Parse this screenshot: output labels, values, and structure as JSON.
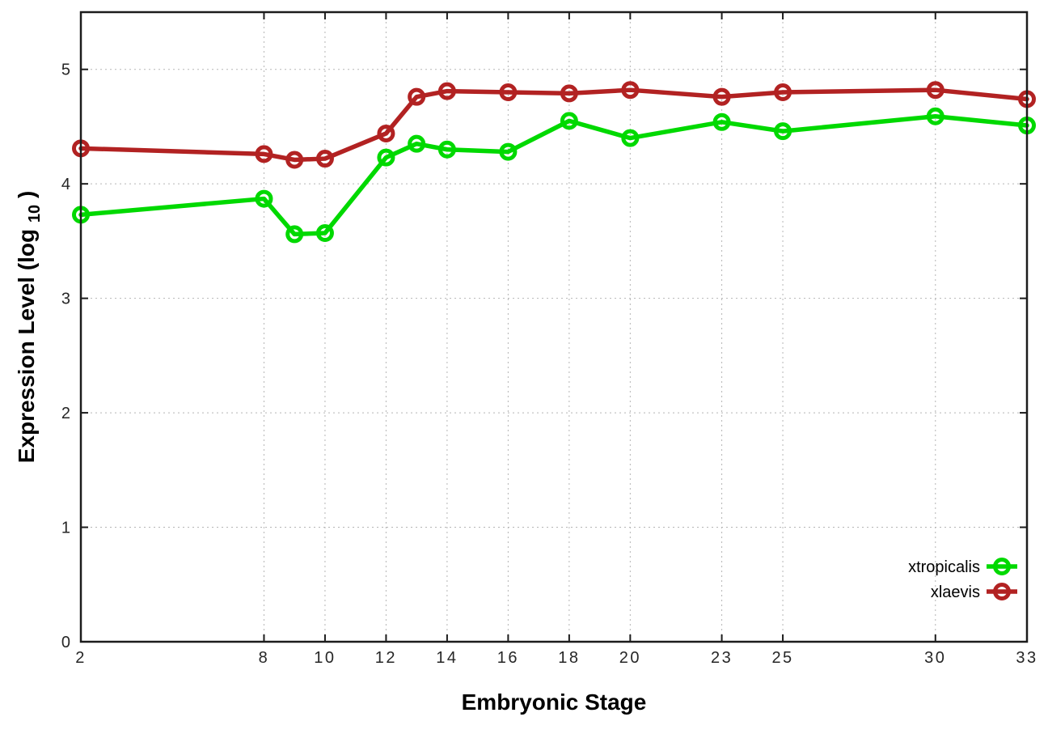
{
  "chart_data": {
    "type": "line",
    "title": "",
    "xlabel": "Embryonic Stage",
    "ylabel": "Expression Level (log10)",
    "ylabel_parts": {
      "main": "Expression Level (log",
      "sub": "10",
      "close": ")"
    },
    "xlim": [
      2,
      33
    ],
    "ylim": [
      0,
      5.5
    ],
    "x_ticks": [
      2,
      8,
      10,
      12,
      14,
      16,
      18,
      20,
      23,
      25,
      30,
      33
    ],
    "x_tick_labels": [
      "2",
      "8",
      "10",
      "12",
      "14",
      "16",
      "18",
      "20",
      "23",
      "25",
      "30",
      "33"
    ],
    "y_ticks": [
      0,
      1,
      2,
      3,
      4,
      5
    ],
    "y_tick_labels": [
      "0",
      "1",
      "2",
      "3",
      "4",
      "5"
    ],
    "grid": true,
    "legend_position": "bottom-right",
    "x": [
      2,
      8,
      9,
      10,
      12,
      13,
      14,
      16,
      18,
      20,
      23,
      25,
      30,
      33
    ],
    "series": [
      {
        "name": "xtropicalis",
        "color": "#00d900",
        "values": [
          3.73,
          3.87,
          3.56,
          3.57,
          4.23,
          4.35,
          4.3,
          4.28,
          4.55,
          4.4,
          4.54,
          4.46,
          4.59,
          4.51
        ]
      },
      {
        "name": "xlaevis",
        "color": "#b22222",
        "values": [
          4.31,
          4.26,
          4.21,
          4.22,
          4.44,
          4.76,
          4.81,
          4.8,
          4.79,
          4.82,
          4.76,
          4.8,
          4.82,
          4.74
        ]
      }
    ],
    "colors": {
      "border": "#1c1c1c",
      "grid": "#b5b5b5",
      "text": "#262626"
    }
  }
}
